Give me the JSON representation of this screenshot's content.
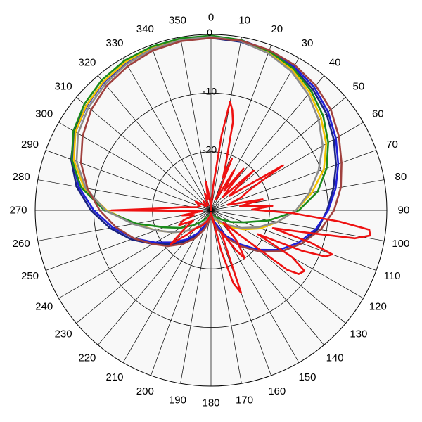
{
  "chart_data": {
    "type": "polar-line",
    "angular_axis": {
      "direction": "clockwise",
      "zero_at": "top",
      "tick_step_deg": 10,
      "tick_labels": [
        "0",
        "10",
        "20",
        "30",
        "40",
        "50",
        "60",
        "70",
        "80",
        "90",
        "100",
        "110",
        "120",
        "130",
        "140",
        "150",
        "160",
        "170",
        "180",
        "190",
        "200",
        "210",
        "220",
        "230",
        "240",
        "250",
        "260",
        "270",
        "280",
        "290",
        "300",
        "310",
        "320",
        "330",
        "340",
        "350"
      ]
    },
    "radial_axis": {
      "range_db": [
        -30,
        0
      ],
      "ring_values": [
        -30,
        -20,
        -10,
        0
      ],
      "ring_labels": [
        "-20",
        "-10",
        "0"
      ]
    },
    "grid": true,
    "legend": "none",
    "background": "#f8f8f8",
    "series": [
      {
        "color": "#1a237e",
        "points": [
          [
            0,
            -0.6
          ],
          [
            10,
            -0.8
          ],
          [
            20,
            -1.3
          ],
          [
            30,
            -2.0
          ],
          [
            40,
            -3.0
          ],
          [
            50,
            -4.3
          ],
          [
            60,
            -5.8
          ],
          [
            70,
            -7.3
          ],
          [
            80,
            -8.8
          ],
          [
            90,
            -10.2
          ],
          [
            100,
            -11.5
          ],
          [
            110,
            -13.5
          ],
          [
            120,
            -16.0
          ],
          [
            130,
            -19.0
          ],
          [
            140,
            -22.0
          ],
          [
            150,
            -25.0
          ],
          [
            160,
            -27.0
          ],
          [
            170,
            -28.5
          ],
          [
            180,
            -29.0
          ],
          [
            190,
            -28.5
          ],
          [
            200,
            -27.0
          ],
          [
            210,
            -25.0
          ],
          [
            220,
            -23.0
          ],
          [
            230,
            -21.0
          ],
          [
            240,
            -18.5
          ],
          [
            250,
            -15.5
          ],
          [
            260,
            -12.5
          ],
          [
            270,
            -9.5
          ],
          [
            280,
            -6.7
          ],
          [
            290,
            -4.6
          ],
          [
            300,
            -3.1
          ],
          [
            310,
            -2.2
          ],
          [
            320,
            -1.5
          ],
          [
            330,
            -1.0
          ],
          [
            340,
            -0.7
          ],
          [
            350,
            -0.6
          ]
        ]
      },
      {
        "color": "#1f1fd8",
        "points": [
          [
            0,
            -0.4
          ],
          [
            10,
            -0.5
          ],
          [
            20,
            -1.0
          ],
          [
            30,
            -1.7
          ],
          [
            40,
            -2.6
          ],
          [
            50,
            -3.9
          ],
          [
            60,
            -5.4
          ],
          [
            70,
            -6.9
          ],
          [
            80,
            -8.4
          ],
          [
            90,
            -10.0
          ],
          [
            100,
            -11.8
          ],
          [
            110,
            -14.0
          ],
          [
            120,
            -16.5
          ],
          [
            130,
            -19.5
          ],
          [
            140,
            -22.5
          ],
          [
            150,
            -25.0
          ],
          [
            160,
            -27.5
          ],
          [
            170,
            -28.5
          ],
          [
            180,
            -29.0
          ],
          [
            190,
            -28.5
          ],
          [
            200,
            -27.5
          ],
          [
            210,
            -25.5
          ],
          [
            220,
            -23.5
          ],
          [
            230,
            -21.5
          ],
          [
            240,
            -19.0
          ],
          [
            250,
            -16.0
          ],
          [
            260,
            -13.0
          ],
          [
            270,
            -10.0
          ],
          [
            280,
            -7.1
          ],
          [
            290,
            -4.9
          ],
          [
            300,
            -3.3
          ],
          [
            310,
            -2.3
          ],
          [
            320,
            -1.5
          ],
          [
            330,
            -0.9
          ],
          [
            340,
            -0.5
          ],
          [
            350,
            -0.4
          ]
        ]
      },
      {
        "color": "#f2c400",
        "points": [
          [
            0,
            -0.3
          ],
          [
            10,
            -0.5
          ],
          [
            20,
            -1.3
          ],
          [
            30,
            -2.3
          ],
          [
            40,
            -3.8
          ],
          [
            50,
            -5.5
          ],
          [
            60,
            -7.3
          ],
          [
            70,
            -9.5
          ],
          [
            80,
            -12.5
          ],
          [
            90,
            -15.5
          ],
          [
            100,
            -18.5
          ],
          [
            110,
            -21.0
          ],
          [
            120,
            -23.5
          ],
          [
            130,
            -25.5
          ],
          [
            140,
            -27.0
          ],
          [
            150,
            -28.0
          ],
          [
            160,
            -28.5
          ],
          [
            170,
            -29.0
          ],
          [
            180,
            -29.0
          ],
          [
            190,
            -28.5
          ],
          [
            200,
            -28.0
          ],
          [
            210,
            -27.0
          ],
          [
            220,
            -26.0
          ],
          [
            230,
            -24.5
          ],
          [
            240,
            -22.5
          ],
          [
            250,
            -20.0
          ],
          [
            260,
            -16.8
          ],
          [
            270,
            -12.2
          ],
          [
            280,
            -8.0
          ],
          [
            290,
            -5.1
          ],
          [
            300,
            -3.3
          ],
          [
            310,
            -2.2
          ],
          [
            320,
            -1.4
          ],
          [
            330,
            -0.8
          ],
          [
            340,
            -0.4
          ],
          [
            350,
            -0.3
          ]
        ]
      },
      {
        "color": "#1a8a1a",
        "points": [
          [
            0,
            -0.2
          ],
          [
            10,
            -0.5
          ],
          [
            20,
            -1.1
          ],
          [
            30,
            -2.0
          ],
          [
            40,
            -3.4
          ],
          [
            50,
            -5.0
          ],
          [
            60,
            -6.9
          ],
          [
            70,
            -9.0
          ],
          [
            80,
            -11.5
          ],
          [
            90,
            -15.0
          ],
          [
            100,
            -20.0
          ],
          [
            110,
            -24.0
          ],
          [
            120,
            -26.0
          ],
          [
            130,
            -27.5
          ],
          [
            140,
            -28.3
          ],
          [
            150,
            -28.8
          ],
          [
            160,
            -29.0
          ],
          [
            170,
            -29.2
          ],
          [
            180,
            -29.3
          ],
          [
            190,
            -29.2
          ],
          [
            200,
            -29.0
          ],
          [
            210,
            -28.5
          ],
          [
            220,
            -27.5
          ],
          [
            230,
            -26.0
          ],
          [
            240,
            -24.0
          ],
          [
            250,
            -21.5
          ],
          [
            260,
            -17.0
          ],
          [
            270,
            -11.8
          ],
          [
            280,
            -7.5
          ],
          [
            290,
            -4.7
          ],
          [
            300,
            -2.9
          ],
          [
            310,
            -1.8
          ],
          [
            320,
            -1.0
          ],
          [
            330,
            -0.5
          ],
          [
            340,
            -0.3
          ],
          [
            350,
            -0.2
          ]
        ]
      },
      {
        "color": "#8c8c8c",
        "points": [
          [
            0,
            -0.4
          ],
          [
            10,
            -0.7
          ],
          [
            20,
            -1.5
          ],
          [
            30,
            -2.6
          ],
          [
            40,
            -4.2
          ],
          [
            50,
            -6.0
          ],
          [
            60,
            -8.0
          ],
          [
            70,
            -10.5
          ],
          [
            80,
            -13.0
          ],
          [
            90,
            -15.5
          ],
          [
            100,
            -18.5
          ],
          [
            110,
            -21.5
          ],
          [
            120,
            -24.0
          ],
          [
            130,
            -26.0
          ],
          [
            140,
            -27.5
          ],
          [
            150,
            -28.3
          ],
          [
            160,
            -28.8
          ],
          [
            170,
            -29.0
          ],
          [
            180,
            -29.2
          ],
          [
            190,
            -29.0
          ],
          [
            200,
            -28.5
          ],
          [
            210,
            -27.5
          ],
          [
            220,
            -26.0
          ],
          [
            230,
            -24.5
          ],
          [
            240,
            -22.5
          ],
          [
            250,
            -20.0
          ],
          [
            260,
            -16.5
          ],
          [
            270,
            -12.0
          ],
          [
            280,
            -8.3
          ],
          [
            290,
            -5.6
          ],
          [
            300,
            -3.8
          ],
          [
            310,
            -2.7
          ],
          [
            320,
            -1.9
          ],
          [
            330,
            -1.2
          ],
          [
            340,
            -0.7
          ],
          [
            350,
            -0.5
          ]
        ]
      },
      {
        "color": "#a0413e",
        "points": [
          [
            0,
            -0.6
          ],
          [
            10,
            -0.6
          ],
          [
            20,
            -0.9
          ],
          [
            30,
            -1.4
          ],
          [
            40,
            -2.2
          ],
          [
            50,
            -3.3
          ],
          [
            60,
            -4.8
          ],
          [
            70,
            -6.3
          ],
          [
            80,
            -7.5
          ],
          [
            90,
            -9.0
          ],
          [
            100,
            -11.0
          ],
          [
            110,
            -13.5
          ],
          [
            120,
            -16.0
          ],
          [
            130,
            -19.0
          ],
          [
            140,
            -22.0
          ],
          [
            150,
            -24.5
          ],
          [
            160,
            -26.5
          ],
          [
            170,
            -28.0
          ],
          [
            180,
            -29.0
          ],
          [
            190,
            -28.0
          ],
          [
            200,
            -26.5
          ],
          [
            210,
            -24.5
          ],
          [
            220,
            -22.5
          ],
          [
            230,
            -20.5
          ],
          [
            240,
            -18.5
          ],
          [
            250,
            -16.0
          ],
          [
            260,
            -13.5
          ],
          [
            270,
            -11.0
          ],
          [
            280,
            -8.6
          ],
          [
            290,
            -6.4
          ],
          [
            300,
            -4.7
          ],
          [
            310,
            -3.3
          ],
          [
            320,
            -2.3
          ],
          [
            330,
            -1.6
          ],
          [
            340,
            -1.0
          ],
          [
            350,
            -0.7
          ]
        ]
      },
      {
        "color": "#ee1111",
        "points": [
          [
            0,
            -30.0
          ],
          [
            5,
            -26.0
          ],
          [
            8,
            -17.0
          ],
          [
            10,
            -11.2
          ],
          [
            12,
            -12.5
          ],
          [
            14,
            -14.5
          ],
          [
            18,
            -22.0
          ],
          [
            20,
            -24.0
          ],
          [
            22,
            -20.5
          ],
          [
            25,
            -28.0
          ],
          [
            30,
            -22.0
          ],
          [
            34,
            -26.0
          ],
          [
            38,
            -21.0
          ],
          [
            42,
            -27.0
          ],
          [
            47,
            -20.0
          ],
          [
            52,
            -26.0
          ],
          [
            58,
            -15.5
          ],
          [
            62,
            -22.5
          ],
          [
            67,
            -24.5
          ],
          [
            72,
            -27.0
          ],
          [
            78,
            -21.0
          ],
          [
            82,
            -25.0
          ],
          [
            86,
            -19.5
          ],
          [
            89,
            -23.0
          ],
          [
            92,
            -16.0
          ],
          [
            95,
            -8.0
          ],
          [
            97,
            -2.8
          ],
          [
            99,
            -2.5
          ],
          [
            101,
            -5.0
          ],
          [
            103,
            -13.0
          ],
          [
            106,
            -19.0
          ],
          [
            108,
            -12.0
          ],
          [
            110,
            -8.0
          ],
          [
            112,
            -9.0
          ],
          [
            114,
            -13.0
          ],
          [
            117,
            -21.0
          ],
          [
            120,
            -14.0
          ],
          [
            123,
            -11.0
          ],
          [
            126,
            -11.5
          ],
          [
            128,
            -13.5
          ],
          [
            131,
            -24.0
          ],
          [
            135,
            -27.0
          ],
          [
            140,
            -23.0
          ],
          [
            145,
            -20.0
          ],
          [
            148,
            -22.0
          ],
          [
            155,
            -26.0
          ],
          [
            160,
            -15.0
          ],
          [
            163,
            -17.0
          ],
          [
            166,
            -23.0
          ],
          [
            170,
            -29.0
          ],
          [
            180,
            -29.5
          ],
          [
            190,
            -29.0
          ],
          [
            200,
            -28.0
          ],
          [
            210,
            -27.0
          ],
          [
            220,
            -26.0
          ],
          [
            225,
            -24.0
          ],
          [
            230,
            -21.0
          ],
          [
            235,
            -24.5
          ],
          [
            240,
            -26.5
          ],
          [
            245,
            -24.0
          ],
          [
            250,
            -25.0
          ],
          [
            255,
            -27.0
          ],
          [
            260,
            -25.0
          ],
          [
            265,
            -28.5
          ],
          [
            270,
            -13.0
          ],
          [
            272,
            -21.0
          ],
          [
            276,
            -25.0
          ],
          [
            282,
            -27.5
          ],
          [
            290,
            -28.0
          ],
          [
            300,
            -27.0
          ],
          [
            310,
            -29.0
          ],
          [
            320,
            -28.0
          ],
          [
            330,
            -29.0
          ],
          [
            340,
            -27.0
          ],
          [
            345,
            -28.0
          ],
          [
            350,
            -25.0
          ],
          [
            355,
            -28.0
          ]
        ]
      }
    ]
  }
}
